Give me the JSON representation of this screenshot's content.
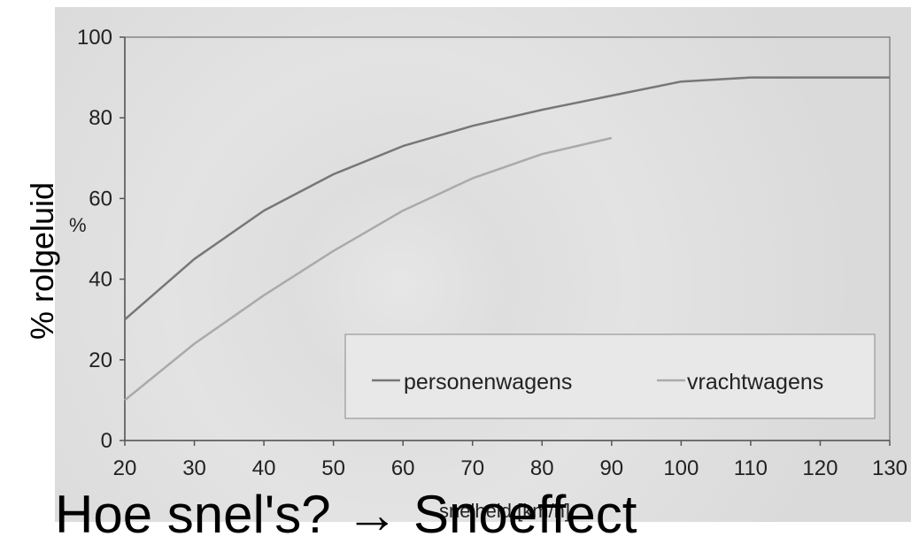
{
  "slide": {
    "side_label": "% rolgeluid",
    "caption": "Hoe snel's? → Snoeffect"
  },
  "chart_data": {
    "type": "line",
    "title": "",
    "xlabel": "snelheid [km/h]",
    "ylabel": "%",
    "xlim": [
      20,
      130
    ],
    "ylim": [
      0,
      100
    ],
    "xticks": [
      20,
      30,
      40,
      50,
      60,
      70,
      80,
      90,
      100,
      110,
      120,
      130
    ],
    "yticks": [
      0,
      20,
      40,
      60,
      80,
      100
    ],
    "grid": false,
    "legend": "bottom-right",
    "series": [
      {
        "name": "personenwagens",
        "color": "#777777",
        "x": [
          20,
          30,
          40,
          50,
          60,
          70,
          80,
          90,
          100,
          110,
          120,
          130
        ],
        "y": [
          30,
          45,
          57,
          66,
          73,
          78,
          82,
          85.5,
          89,
          90,
          90,
          90
        ]
      },
      {
        "name": "vrachtwagens",
        "color": "#aaaaaa",
        "x": [
          20,
          30,
          40,
          50,
          60,
          70,
          80,
          90
        ],
        "y": [
          10,
          24,
          36,
          47,
          57,
          65,
          71,
          75
        ]
      }
    ]
  }
}
